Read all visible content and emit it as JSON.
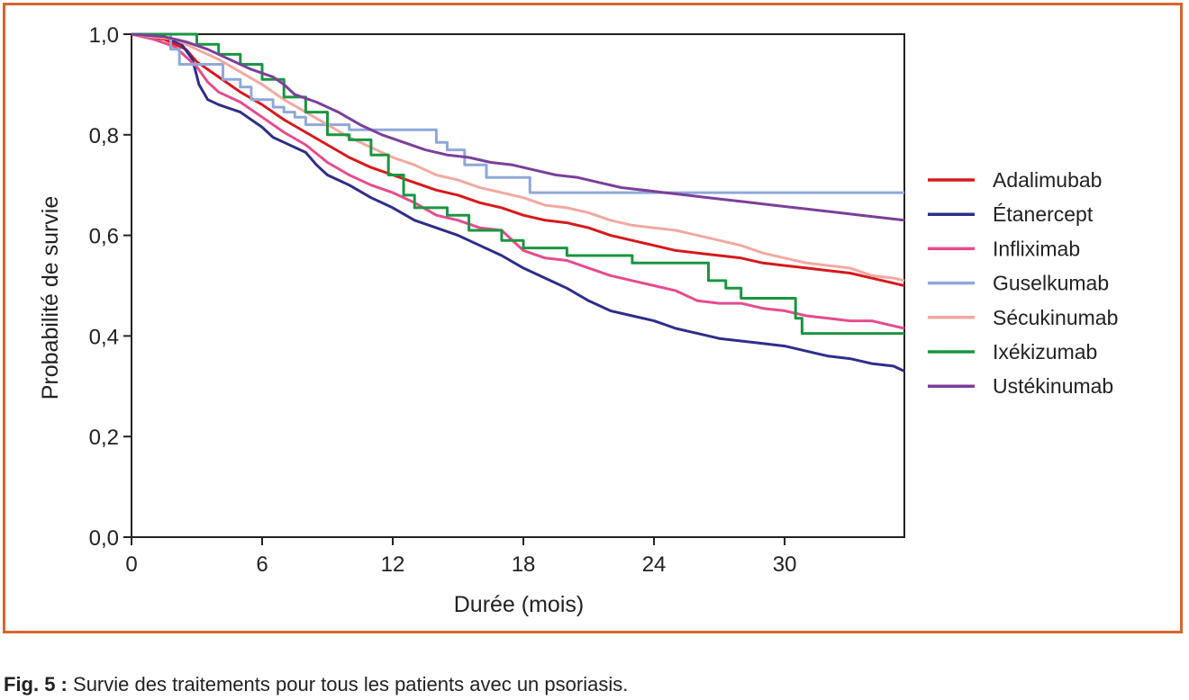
{
  "chart_data": {
    "type": "line",
    "title": "",
    "xlabel": "Durée (mois)",
    "ylabel": "Probabilité de survie",
    "xlim": [
      0,
      35.5
    ],
    "ylim": [
      0,
      1.0
    ],
    "x_ticks": [
      0,
      6,
      12,
      18,
      24,
      30
    ],
    "x_tick_labels": [
      "0",
      "6",
      "12",
      "18",
      "24",
      "30"
    ],
    "y_ticks": [
      0,
      0.2,
      0.4,
      0.6,
      0.8,
      1.0
    ],
    "y_tick_labels": [
      "0,0",
      "0,2",
      "0,4",
      "0,6",
      "0,8",
      "1,0"
    ],
    "grid": false,
    "legend_position": "right",
    "series": [
      {
        "name": "Adalimubab",
        "color": "#d7191c",
        "step": false,
        "points": [
          [
            0,
            1.0
          ],
          [
            1.5,
            0.99
          ],
          [
            2.5,
            0.97
          ],
          [
            3,
            0.945
          ],
          [
            4,
            0.915
          ],
          [
            5,
            0.885
          ],
          [
            6,
            0.86
          ],
          [
            7,
            0.83
          ],
          [
            8,
            0.805
          ],
          [
            9,
            0.78
          ],
          [
            10,
            0.755
          ],
          [
            11,
            0.735
          ],
          [
            12,
            0.72
          ],
          [
            13,
            0.705
          ],
          [
            14,
            0.69
          ],
          [
            15,
            0.68
          ],
          [
            16,
            0.665
          ],
          [
            17,
            0.655
          ],
          [
            18,
            0.64
          ],
          [
            19,
            0.63
          ],
          [
            20,
            0.625
          ],
          [
            21,
            0.615
          ],
          [
            22,
            0.6
          ],
          [
            23,
            0.59
          ],
          [
            24,
            0.58
          ],
          [
            25,
            0.57
          ],
          [
            26,
            0.565
          ],
          [
            27,
            0.56
          ],
          [
            28,
            0.555
          ],
          [
            29,
            0.545
          ],
          [
            30,
            0.54
          ],
          [
            31,
            0.535
          ],
          [
            32,
            0.53
          ],
          [
            33,
            0.525
          ],
          [
            34,
            0.515
          ],
          [
            35,
            0.505
          ],
          [
            35.5,
            0.5
          ]
        ]
      },
      {
        "name": "Étanercept",
        "color": "#2e2e8a",
        "step": false,
        "points": [
          [
            0,
            1.0
          ],
          [
            1.5,
            0.995
          ],
          [
            2.3,
            0.98
          ],
          [
            2.8,
            0.95
          ],
          [
            3.1,
            0.9
          ],
          [
            3.5,
            0.87
          ],
          [
            4,
            0.86
          ],
          [
            5,
            0.845
          ],
          [
            6,
            0.815
          ],
          [
            6.5,
            0.795
          ],
          [
            7,
            0.785
          ],
          [
            8,
            0.765
          ],
          [
            8.5,
            0.74
          ],
          [
            9,
            0.72
          ],
          [
            10,
            0.7
          ],
          [
            11,
            0.675
          ],
          [
            12,
            0.655
          ],
          [
            13,
            0.63
          ],
          [
            14,
            0.615
          ],
          [
            15,
            0.6
          ],
          [
            16,
            0.58
          ],
          [
            17,
            0.56
          ],
          [
            18,
            0.535
          ],
          [
            19,
            0.515
          ],
          [
            20,
            0.495
          ],
          [
            21,
            0.47
          ],
          [
            22,
            0.45
          ],
          [
            23,
            0.44
          ],
          [
            24,
            0.43
          ],
          [
            25,
            0.415
          ],
          [
            26,
            0.405
          ],
          [
            27,
            0.395
          ],
          [
            28,
            0.39
          ],
          [
            29,
            0.385
          ],
          [
            30,
            0.38
          ],
          [
            31,
            0.37
          ],
          [
            32,
            0.36
          ],
          [
            33,
            0.355
          ],
          [
            34,
            0.345
          ],
          [
            35,
            0.34
          ],
          [
            35.5,
            0.33
          ]
        ]
      },
      {
        "name": "Infliximab",
        "color": "#e54c8e",
        "step": false,
        "points": [
          [
            0,
            1.0
          ],
          [
            1,
            0.99
          ],
          [
            2,
            0.975
          ],
          [
            3,
            0.935
          ],
          [
            3.5,
            0.905
          ],
          [
            4,
            0.885
          ],
          [
            5,
            0.865
          ],
          [
            6,
            0.835
          ],
          [
            7,
            0.805
          ],
          [
            8,
            0.78
          ],
          [
            9,
            0.745
          ],
          [
            10,
            0.72
          ],
          [
            11,
            0.7
          ],
          [
            12,
            0.685
          ],
          [
            13,
            0.665
          ],
          [
            14,
            0.64
          ],
          [
            15,
            0.63
          ],
          [
            16,
            0.615
          ],
          [
            17,
            0.61
          ],
          [
            18,
            0.57
          ],
          [
            19,
            0.555
          ],
          [
            20,
            0.55
          ],
          [
            21,
            0.535
          ],
          [
            22,
            0.52
          ],
          [
            23,
            0.51
          ],
          [
            24,
            0.5
          ],
          [
            25,
            0.49
          ],
          [
            26,
            0.47
          ],
          [
            27,
            0.465
          ],
          [
            28,
            0.465
          ],
          [
            29,
            0.455
          ],
          [
            30,
            0.45
          ],
          [
            31,
            0.44
          ],
          [
            32,
            0.435
          ],
          [
            33,
            0.43
          ],
          [
            34,
            0.43
          ],
          [
            35,
            0.42
          ],
          [
            35.5,
            0.415
          ]
        ]
      },
      {
        "name": "Guselkumab",
        "color": "#8fa8d9",
        "step": true,
        "points": [
          [
            0,
            1.0
          ],
          [
            1.8,
            0.97
          ],
          [
            2.2,
            0.94
          ],
          [
            4.2,
            0.91
          ],
          [
            5,
            0.895
          ],
          [
            5.5,
            0.87
          ],
          [
            6.5,
            0.855
          ],
          [
            7,
            0.845
          ],
          [
            7.5,
            0.835
          ],
          [
            8,
            0.82
          ],
          [
            10,
            0.81
          ],
          [
            14,
            0.785
          ],
          [
            14.5,
            0.77
          ],
          [
            15.3,
            0.74
          ],
          [
            16.3,
            0.715
          ],
          [
            18.3,
            0.685
          ],
          [
            35.5,
            0.685
          ]
        ]
      },
      {
        "name": "Sécukinumab",
        "color": "#f2a9a0",
        "step": false,
        "points": [
          [
            0,
            1.0
          ],
          [
            2,
            0.99
          ],
          [
            3,
            0.97
          ],
          [
            4,
            0.95
          ],
          [
            5,
            0.925
          ],
          [
            6,
            0.9
          ],
          [
            7,
            0.87
          ],
          [
            8,
            0.845
          ],
          [
            9,
            0.82
          ],
          [
            10,
            0.795
          ],
          [
            11,
            0.775
          ],
          [
            12,
            0.755
          ],
          [
            13,
            0.74
          ],
          [
            14,
            0.72
          ],
          [
            15,
            0.71
          ],
          [
            16,
            0.695
          ],
          [
            17,
            0.685
          ],
          [
            18,
            0.675
          ],
          [
            19,
            0.66
          ],
          [
            20,
            0.655
          ],
          [
            21,
            0.645
          ],
          [
            22,
            0.63
          ],
          [
            23,
            0.62
          ],
          [
            24,
            0.615
          ],
          [
            25,
            0.61
          ],
          [
            26,
            0.6
          ],
          [
            27,
            0.59
          ],
          [
            28,
            0.58
          ],
          [
            29,
            0.565
          ],
          [
            30,
            0.555
          ],
          [
            31,
            0.545
          ],
          [
            32,
            0.54
          ],
          [
            33,
            0.535
          ],
          [
            34,
            0.52
          ],
          [
            35,
            0.515
          ],
          [
            35.5,
            0.51
          ]
        ]
      },
      {
        "name": "Ixékizumab",
        "color": "#1a9640",
        "step": true,
        "points": [
          [
            0,
            1.0
          ],
          [
            3,
            0.98
          ],
          [
            4,
            0.96
          ],
          [
            5,
            0.94
          ],
          [
            6,
            0.91
          ],
          [
            7,
            0.875
          ],
          [
            8,
            0.845
          ],
          [
            9,
            0.8
          ],
          [
            10,
            0.79
          ],
          [
            11,
            0.76
          ],
          [
            11.8,
            0.72
          ],
          [
            12.5,
            0.68
          ],
          [
            13,
            0.655
          ],
          [
            14.5,
            0.64
          ],
          [
            15.5,
            0.61
          ],
          [
            16.5,
            0.61
          ],
          [
            17,
            0.59
          ],
          [
            18,
            0.575
          ],
          [
            20,
            0.56
          ],
          [
            22,
            0.56
          ],
          [
            23,
            0.545
          ],
          [
            26.5,
            0.51
          ],
          [
            27.3,
            0.495
          ],
          [
            28,
            0.475
          ],
          [
            30.5,
            0.435
          ],
          [
            30.8,
            0.405
          ],
          [
            35.5,
            0.405
          ]
        ]
      },
      {
        "name": "Ustékinumab",
        "color": "#7b3f9a",
        "step": false,
        "points": [
          [
            0,
            1.0
          ],
          [
            1.5,
            0.995
          ],
          [
            2.5,
            0.985
          ],
          [
            3.5,
            0.97
          ],
          [
            4.5,
            0.95
          ],
          [
            5.5,
            0.93
          ],
          [
            6.5,
            0.915
          ],
          [
            7,
            0.9
          ],
          [
            7.5,
            0.88
          ],
          [
            8.5,
            0.865
          ],
          [
            9.5,
            0.845
          ],
          [
            10.5,
            0.82
          ],
          [
            11.5,
            0.8
          ],
          [
            12.5,
            0.785
          ],
          [
            13.5,
            0.77
          ],
          [
            14.5,
            0.76
          ],
          [
            15.5,
            0.755
          ],
          [
            16.5,
            0.745
          ],
          [
            17.5,
            0.74
          ],
          [
            18.5,
            0.73
          ],
          [
            19.5,
            0.72
          ],
          [
            20.5,
            0.715
          ],
          [
            21.5,
            0.705
          ],
          [
            22.5,
            0.695
          ],
          [
            23.5,
            0.69
          ],
          [
            24.5,
            0.685
          ],
          [
            25.5,
            0.68
          ],
          [
            26.5,
            0.675
          ],
          [
            27.5,
            0.67
          ],
          [
            28.5,
            0.665
          ],
          [
            29.5,
            0.66
          ],
          [
            30.5,
            0.655
          ],
          [
            31.5,
            0.65
          ],
          [
            32.5,
            0.645
          ],
          [
            33.5,
            0.64
          ],
          [
            34.5,
            0.635
          ],
          [
            35.5,
            0.63
          ]
        ]
      }
    ]
  },
  "caption": {
    "label": "Fig. 5 :",
    "text": "Survie des traitements pour tous les patients avec un psoriasis."
  }
}
